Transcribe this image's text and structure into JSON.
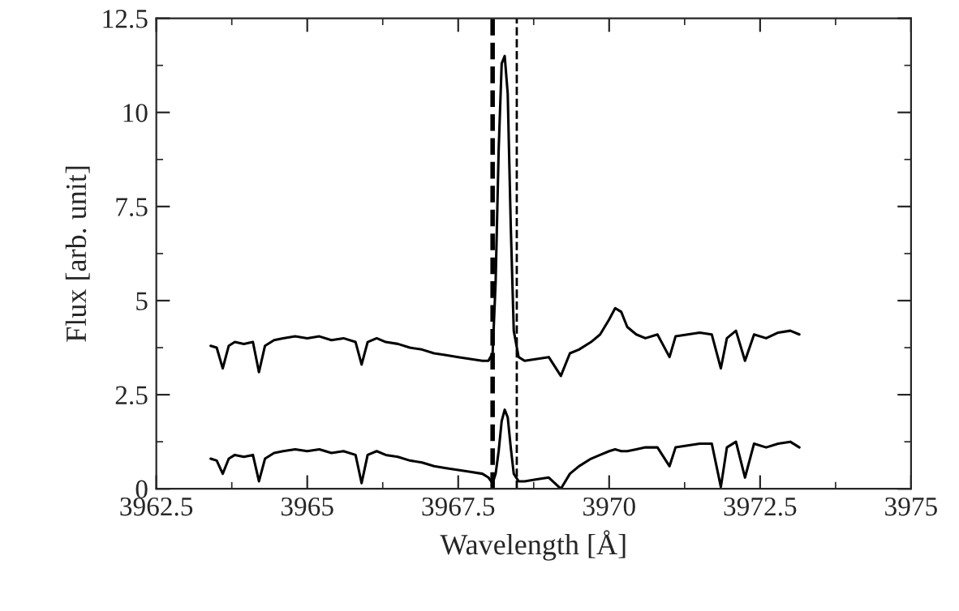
{
  "chart_data": {
    "type": "line",
    "xlabel": "Wavelength [Å]",
    "ylabel": "Flux [arb. unit]",
    "xlim": [
      3962.5,
      3975
    ],
    "xticks": [
      3962.5,
      3965,
      3967.5,
      3970,
      3972.5,
      3975
    ],
    "ylim": [
      0,
      12.5
    ],
    "yticks": [
      0,
      2.5,
      5,
      7.5,
      10,
      12.5
    ],
    "marker": "none",
    "line_style": "solid",
    "ref_lines": [
      {
        "axis": "x",
        "value": 3968.07,
        "color": "#000000",
        "line_style": "dashed"
      },
      {
        "axis": "x",
        "value": 3968.47,
        "color": "#000000",
        "line_style": "dashed"
      }
    ],
    "series": [
      {
        "color": "#000000",
        "x": [
          3963.4,
          3963.5,
          3963.6,
          3963.7,
          3963.8,
          3963.95,
          3964.1,
          3964.2,
          3964.3,
          3964.45,
          3964.6,
          3964.8,
          3965.0,
          3965.2,
          3965.4,
          3965.6,
          3965.8,
          3965.9,
          3966.0,
          3966.15,
          3966.3,
          3966.5,
          3966.7,
          3966.9,
          3967.1,
          3967.3,
          3967.5,
          3967.7,
          3967.9,
          3968.0,
          3968.07,
          3968.12,
          3968.17,
          3968.22,
          3968.27,
          3968.32,
          3968.37,
          3968.42,
          3968.5,
          3968.6,
          3968.8,
          3969.0,
          3969.2,
          3969.35,
          3969.5,
          3969.7,
          3969.85,
          3970.0,
          3970.1,
          3970.2,
          3970.3,
          3970.45,
          3970.6,
          3970.8,
          3971.0,
          3971.1,
          3971.3,
          3971.5,
          3971.7,
          3971.85,
          3971.95,
          3972.1,
          3972.25,
          3972.4,
          3972.6,
          3972.8,
          3973.0,
          3973.15
        ],
        "values": [
          3.8,
          3.75,
          3.2,
          3.8,
          3.9,
          3.85,
          3.9,
          3.1,
          3.8,
          3.95,
          4.0,
          4.05,
          4.0,
          4.05,
          3.95,
          4.0,
          3.9,
          3.3,
          3.9,
          4.0,
          3.9,
          3.85,
          3.75,
          3.7,
          3.6,
          3.55,
          3.5,
          3.45,
          3.4,
          3.4,
          3.6,
          5.5,
          9.0,
          11.3,
          11.5,
          10.5,
          7.0,
          4.2,
          3.5,
          3.4,
          3.45,
          3.5,
          3.0,
          3.6,
          3.7,
          3.9,
          4.1,
          4.5,
          4.8,
          4.7,
          4.3,
          4.1,
          4.0,
          4.1,
          3.5,
          4.05,
          4.1,
          4.15,
          4.1,
          3.2,
          4.0,
          4.2,
          3.4,
          4.1,
          4.0,
          4.15,
          4.2,
          4.1
        ]
      },
      {
        "color": "#000000",
        "x": [
          3963.4,
          3963.5,
          3963.6,
          3963.7,
          3963.8,
          3963.95,
          3964.1,
          3964.2,
          3964.3,
          3964.45,
          3964.6,
          3964.8,
          3965.0,
          3965.2,
          3965.4,
          3965.6,
          3965.8,
          3965.9,
          3966.0,
          3966.15,
          3966.3,
          3966.5,
          3966.7,
          3966.9,
          3967.1,
          3967.3,
          3967.5,
          3967.7,
          3967.9,
          3968.0,
          3968.07,
          3968.12,
          3968.17,
          3968.22,
          3968.27,
          3968.32,
          3968.37,
          3968.42,
          3968.5,
          3968.6,
          3968.8,
          3969.0,
          3969.2,
          3969.35,
          3969.5,
          3969.7,
          3969.85,
          3970.0,
          3970.1,
          3970.2,
          3970.3,
          3970.45,
          3970.6,
          3970.8,
          3971.0,
          3971.1,
          3971.3,
          3971.5,
          3971.7,
          3971.85,
          3971.95,
          3972.1,
          3972.25,
          3972.4,
          3972.6,
          3972.8,
          3973.0,
          3973.15
        ],
        "values": [
          0.8,
          0.75,
          0.4,
          0.8,
          0.9,
          0.85,
          0.9,
          0.2,
          0.8,
          0.95,
          1.0,
          1.05,
          1.0,
          1.05,
          0.95,
          1.0,
          0.9,
          0.15,
          0.9,
          1.0,
          0.9,
          0.85,
          0.75,
          0.7,
          0.6,
          0.55,
          0.5,
          0.45,
          0.4,
          0.3,
          0.15,
          0.4,
          1.0,
          1.8,
          2.1,
          1.9,
          1.1,
          0.4,
          0.2,
          0.2,
          0.25,
          0.3,
          0.0,
          0.4,
          0.6,
          0.8,
          0.9,
          1.0,
          1.05,
          1.0,
          1.0,
          1.05,
          1.1,
          1.1,
          0.6,
          1.1,
          1.15,
          1.2,
          1.2,
          0.05,
          1.1,
          1.25,
          0.3,
          1.2,
          1.1,
          1.2,
          1.25,
          1.1
        ]
      }
    ]
  }
}
